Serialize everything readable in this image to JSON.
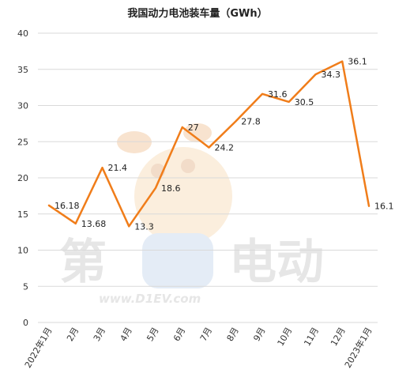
{
  "chart_data": {
    "type": "line",
    "title": "我国动力电池装车量（GWh）",
    "categories": [
      "2022年1月",
      "2月",
      "3月",
      "4月",
      "5月",
      "6月",
      "7月",
      "8月",
      "9月",
      "10月",
      "11月",
      "12月",
      "2023年1月"
    ],
    "values": [
      16.18,
      13.68,
      21.4,
      13.3,
      18.6,
      27,
      24.2,
      27.8,
      31.6,
      30.5,
      34.3,
      36.1,
      16.1
    ],
    "data_labels": [
      "16.18",
      "13.68",
      "21.4",
      "13.3",
      "18.6",
      "27",
      "24.2",
      "27.8",
      "31.6",
      "30.5",
      "34.3",
      "36.1",
      "16.1"
    ],
    "ylim": [
      0,
      40
    ],
    "yticks": [
      0,
      5,
      10,
      15,
      20,
      25,
      30,
      35,
      40
    ],
    "grid": true,
    "line_color": "#F07D1A"
  },
  "watermark": {
    "brand_left": "第",
    "brand_right": "电动",
    "url": "www.D1EV.com"
  }
}
